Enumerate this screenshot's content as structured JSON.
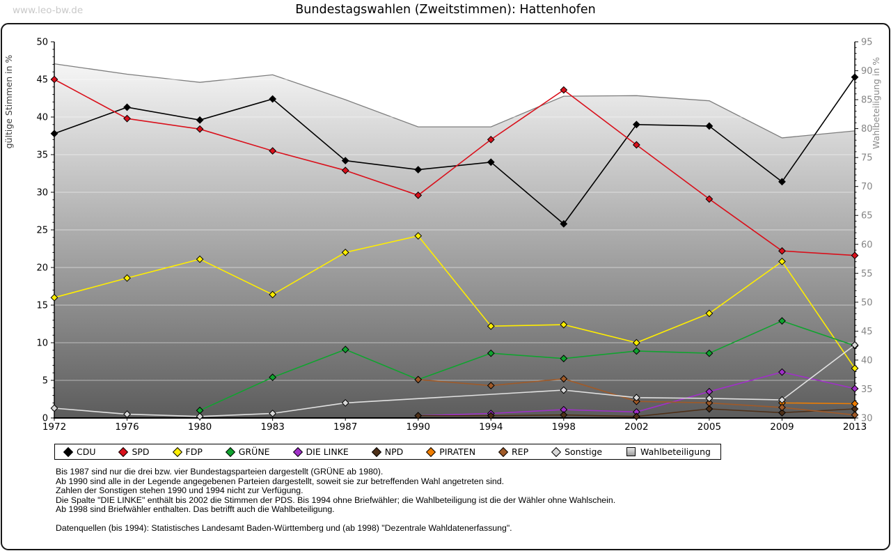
{
  "watermark": "www.leo-bw.de",
  "title": "Bundestagswahlen (Zweitstimmen): Hattenhofen",
  "chart_data": {
    "type": "line",
    "categories": [
      "1972",
      "1976",
      "1980",
      "1983",
      "1987",
      "1990",
      "1994",
      "1998",
      "2002",
      "2005",
      "2009",
      "2013"
    ],
    "y_left": {
      "label": "gültige Stimmen in %",
      "min": 0,
      "max": 50,
      "tick_step": 5,
      "minor_step": 1
    },
    "y_right": {
      "label": "Wahlbeteiligung in %",
      "min": 30,
      "max": 95,
      "tick_step": 5,
      "minor_step": 1
    },
    "grid": "white horizontal lines at left-axis steps of 5, visible over turnout area",
    "legend_position": "bottom-box",
    "series": [
      {
        "name": "CDU",
        "color": "#000000",
        "marker": "diamond",
        "axis": "left",
        "values": [
          37.8,
          41.3,
          39.6,
          42.4,
          34.2,
          33.0,
          34.0,
          25.8,
          39.0,
          38.8,
          31.4,
          45.3
        ]
      },
      {
        "name": "SPD",
        "color": "#d9101b",
        "marker": "diamond",
        "axis": "left",
        "values": [
          45.0,
          39.8,
          38.4,
          35.5,
          32.9,
          29.6,
          37.0,
          43.6,
          36.3,
          29.1,
          22.2,
          21.6
        ]
      },
      {
        "name": "FDP",
        "color": "#ffee00",
        "marker": "diamond",
        "axis": "left",
        "values": [
          16.0,
          18.6,
          21.1,
          16.4,
          22.0,
          24.2,
          12.2,
          12.4,
          10.0,
          13.9,
          20.8,
          6.6
        ]
      },
      {
        "name": "GRÜNE",
        "color": "#10a32f",
        "marker": "diamond",
        "axis": "left",
        "values": [
          null,
          null,
          1.0,
          5.4,
          9.1,
          5.1,
          8.6,
          7.9,
          8.9,
          8.6,
          12.9,
          9.6
        ]
      },
      {
        "name": "DIE LINKE",
        "color": "#a030c8",
        "marker": "diamond",
        "axis": "left",
        "values": [
          null,
          null,
          null,
          null,
          null,
          0.3,
          0.6,
          1.1,
          0.8,
          3.5,
          6.1,
          3.9
        ]
      },
      {
        "name": "NPD",
        "color": "#4e3018",
        "marker": "diamond",
        "axis": "left",
        "values": [
          null,
          null,
          null,
          null,
          null,
          0.3,
          0.3,
          0.4,
          0.2,
          1.2,
          0.7,
          1.2
        ]
      },
      {
        "name": "PIRATEN",
        "color": "#ef7d00",
        "marker": "diamond",
        "axis": "left",
        "values": [
          null,
          null,
          null,
          null,
          null,
          null,
          null,
          null,
          null,
          null,
          2.0,
          1.9
        ]
      },
      {
        "name": "REP",
        "color": "#a05a28",
        "marker": "diamond",
        "axis": "left",
        "values": [
          null,
          null,
          null,
          null,
          null,
          5.1,
          4.3,
          5.2,
          2.2,
          2.0,
          1.4,
          0.4
        ]
      },
      {
        "name": "Sonstige",
        "color": "#d8d8d8",
        "line_color": "#e2e2e2",
        "marker": "diamond",
        "axis": "left",
        "values": [
          1.3,
          0.5,
          0.2,
          0.6,
          2.0,
          null,
          null,
          3.7,
          2.7,
          2.6,
          2.4,
          9.7
        ]
      },
      {
        "name": "Wahlbeteiligung",
        "color": "#7d7d7d",
        "marker": "square",
        "axis": "right",
        "render": "area",
        "area_gradient": [
          "#ffffff",
          "#5c5c5c"
        ],
        "values": [
          91.2,
          89.4,
          88.0,
          89.3,
          85.0,
          80.3,
          80.3,
          85.6,
          85.7,
          84.8,
          78.4,
          79.6
        ]
      }
    ]
  },
  "footnotes": [
    "Bis 1987 sind nur die drei bzw. vier Bundestagsparteien dargestellt (GRÜNE ab 1980).",
    "Ab 1990 sind alle in der Legende angegebenen Parteien dargestellt, soweit sie zur betreffenden Wahl angetreten sind.",
    "Zahlen der Sonstigen stehen 1990 und 1994 nicht zur Verfügung.",
    "Die Spalte \"DIE LINKE\" enthält bis 2002 die Stimmen der PDS. Bis 1994 ohne Briefwähler; die Wahlbeteiligung ist die der Wähler ohne Wahlschein.",
    "Ab 1998 sind Briefwähler enthalten. Das betrifft auch die Wahlbeteiligung."
  ],
  "source": "Datenquellen (bis 1994): Statistisches Landesamt Baden-Württemberg und (ab 1998) \"Dezentrale Wahldatenerfassung\"."
}
